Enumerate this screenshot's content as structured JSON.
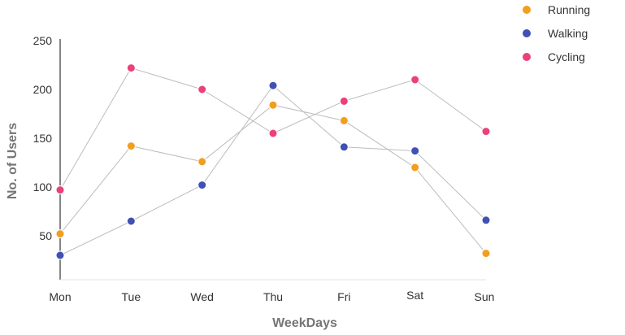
{
  "chart_data": {
    "type": "line",
    "categories": [
      "Mon",
      "Tue",
      "Wed",
      "Thu",
      "Fri",
      "Sat",
      "Sun"
    ],
    "series": [
      {
        "name": "Running",
        "color": "#f29e1f",
        "values": [
          52,
          142,
          126,
          184,
          168,
          120,
          32
        ]
      },
      {
        "name": "Walking",
        "color": "#3f51b5",
        "values": [
          30,
          65,
          102,
          204,
          141,
          137,
          66
        ]
      },
      {
        "name": "Cycling",
        "color": "#ec407a",
        "values": [
          97,
          222,
          200,
          155,
          188,
          210,
          157
        ]
      }
    ],
    "xlabel": "WeekDays",
    "ylabel": "No. of Users",
    "yticks": [
      50,
      100,
      150,
      200,
      250
    ],
    "ylim": [
      0,
      250
    ],
    "grid": false,
    "legend_position": "top-right",
    "line_color": "#bdbdbd"
  }
}
